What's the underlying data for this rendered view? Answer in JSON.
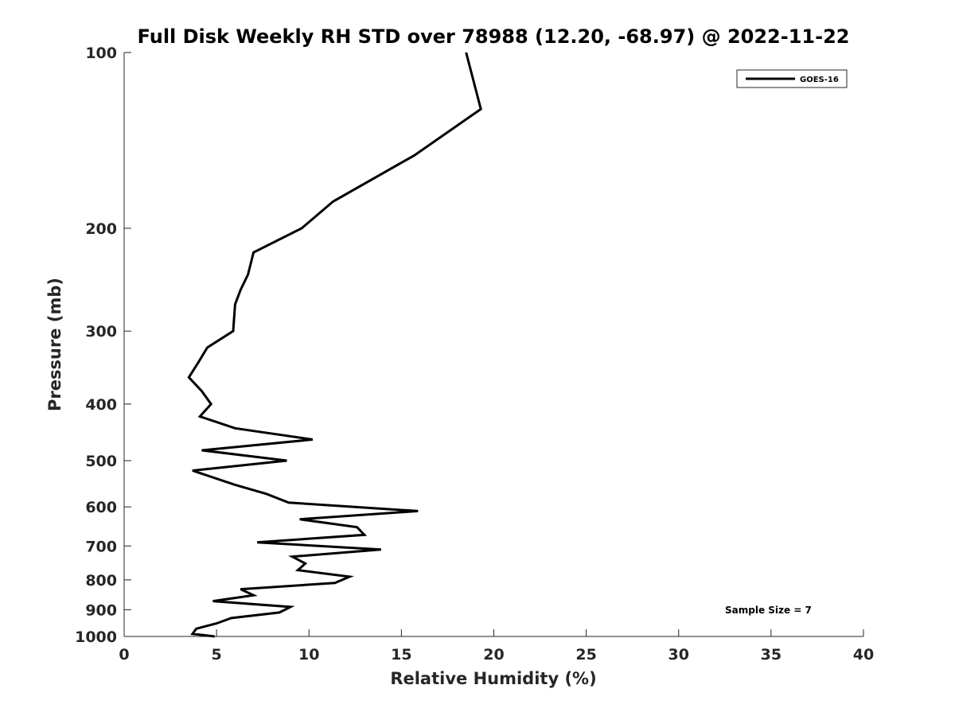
{
  "chart_data": {
    "type": "line",
    "title": "Full Disk Weekly RH STD over 78988 (12.20, -68.97) @ 2022-11-22",
    "xlabel": "Relative Humidity (%)",
    "ylabel": "Pressure (mb)",
    "xlim": [
      0,
      40
    ],
    "ylim": [
      100,
      1000
    ],
    "y_scale": "log",
    "y_reversed": true,
    "xticks": [
      0,
      5,
      10,
      15,
      20,
      25,
      30,
      35,
      40
    ],
    "yticks": [
      100,
      200,
      300,
      400,
      500,
      600,
      700,
      800,
      900,
      1000
    ],
    "grid": false,
    "legend_position": "top-right",
    "annotation": "Sample Size = 7",
    "series": [
      {
        "name": "GOES-16",
        "color": "#000000",
        "points": [
          [
            18.5,
            100
          ],
          [
            19.3,
            125
          ],
          [
            15.7,
            150
          ],
          [
            11.3,
            180
          ],
          [
            9.6,
            200
          ],
          [
            7.0,
            220
          ],
          [
            6.7,
            240
          ],
          [
            6.3,
            255
          ],
          [
            6.0,
            270
          ],
          [
            5.9,
            300
          ],
          [
            4.5,
            320
          ],
          [
            4.0,
            340
          ],
          [
            3.5,
            360
          ],
          [
            4.2,
            380
          ],
          [
            4.7,
            400
          ],
          [
            4.1,
            420
          ],
          [
            6.0,
            440
          ],
          [
            10.2,
            460
          ],
          [
            4.2,
            480
          ],
          [
            8.8,
            500
          ],
          [
            3.7,
            520
          ],
          [
            6.0,
            550
          ],
          [
            7.7,
            570
          ],
          [
            8.9,
            590
          ],
          [
            15.9,
            610
          ],
          [
            9.5,
            630
          ],
          [
            12.6,
            650
          ],
          [
            13.0,
            670
          ],
          [
            7.2,
            690
          ],
          [
            13.9,
            710
          ],
          [
            9.1,
            730
          ],
          [
            9.8,
            750
          ],
          [
            9.4,
            770
          ],
          [
            12.2,
            790
          ],
          [
            11.4,
            810
          ],
          [
            6.3,
            830
          ],
          [
            7.0,
            850
          ],
          [
            4.8,
            870
          ],
          [
            9.0,
            890
          ],
          [
            8.4,
            910
          ],
          [
            5.8,
            930
          ],
          [
            5.0,
            950
          ],
          [
            3.9,
            970
          ],
          [
            3.7,
            990
          ],
          [
            4.9,
            1000
          ]
        ]
      }
    ]
  }
}
